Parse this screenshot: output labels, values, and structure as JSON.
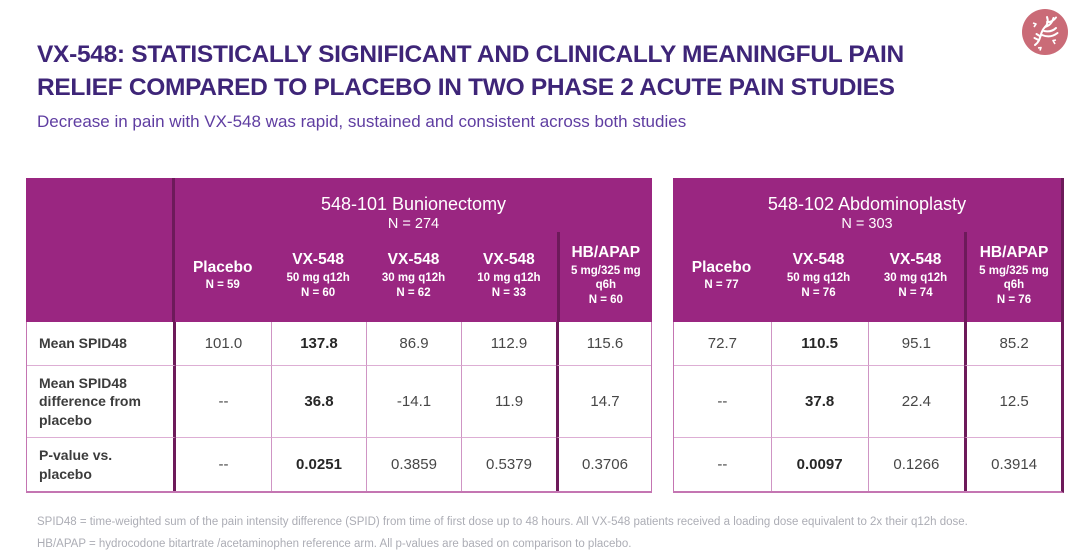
{
  "header": {
    "title_line1": "VX-548: STATISTICALLY SIGNIFICANT AND CLINICALLY MEANINGFUL PAIN",
    "title_line2": "RELIEF COMPARED TO PLACEBO IN TWO PHASE 2 ACUTE PAIN STUDIES",
    "subtitle": "Decrease in pain with VX-548 was rapid, sustained and consistent across both studies",
    "logo_icon": "vertex-logo-icon"
  },
  "tables": [
    {
      "study_title": "548-101 Bunionectomy",
      "study_n": "N = 274",
      "has_row_labels": true,
      "row_labels": [
        "Mean SPID48",
        "Mean SPID48 difference from placebo",
        "P-value vs. placebo"
      ],
      "columns": [
        {
          "name": "Placebo",
          "dose": "",
          "n": "N = 59",
          "dark_left": false,
          "bold_values": false
        },
        {
          "name": "VX-548",
          "dose": "50 mg q12h",
          "n": "N = 60",
          "dark_left": false,
          "bold_values": true
        },
        {
          "name": "VX-548",
          "dose": "30 mg q12h",
          "n": "N = 62",
          "dark_left": false,
          "bold_values": false
        },
        {
          "name": "VX-548",
          "dose": "10 mg q12h",
          "n": "N = 33",
          "dark_left": false,
          "bold_values": false
        },
        {
          "name": "HB/APAP",
          "dose": "5 mg/325 mg\nq6h",
          "n": "N = 60",
          "dark_left": true,
          "bold_values": false
        }
      ],
      "rows": [
        [
          "101.0",
          "137.8",
          "86.9",
          "112.9",
          "115.6"
        ],
        [
          "--",
          "36.8",
          "-14.1",
          "11.9",
          "14.7"
        ],
        [
          "--",
          "0.0251",
          "0.3859",
          "0.5379",
          "0.3706"
        ]
      ]
    },
    {
      "study_title": "548-102 Abdominoplasty",
      "study_n": "N = 303",
      "has_row_labels": false,
      "row_labels": [],
      "columns": [
        {
          "name": "Placebo",
          "dose": "",
          "n": "N = 77",
          "dark_left": false,
          "bold_values": false
        },
        {
          "name": "VX-548",
          "dose": "50 mg q12h",
          "n": "N = 76",
          "dark_left": false,
          "bold_values": true
        },
        {
          "name": "VX-548",
          "dose": "30 mg q12h",
          "n": "N = 74",
          "dark_left": false,
          "bold_values": false
        },
        {
          "name": "HB/APAP",
          "dose": "5 mg/325 mg\nq6h",
          "n": "N = 76",
          "dark_left": true,
          "bold_values": false
        }
      ],
      "rows": [
        [
          "72.7",
          "110.5",
          "95.1",
          "85.2"
        ],
        [
          "--",
          "37.8",
          "22.4",
          "12.5"
        ],
        [
          "--",
          "0.0097",
          "0.1266",
          "0.3914"
        ]
      ]
    }
  ],
  "footnotes": [
    "SPID48 = time-weighted sum of the pain intensity difference (SPID) from time of first dose up to 48 hours. All VX-548 patients received a loading dose equivalent to 2x their q12h dose.",
    "HB/APAP = hydrocodone bitartrate /acetaminophen reference arm. All p-values are based on comparison to placebo."
  ],
  "colors": {
    "header_magenta": "#9A2681",
    "dark_divider": "#6D1A5A",
    "title_purple": "#3E2578",
    "subtitle_purple": "#5F3DA1",
    "logo_rose": "#CA6B77",
    "table_border_pink": "#C475B2",
    "grid_line_pink": "#DDAED4"
  }
}
